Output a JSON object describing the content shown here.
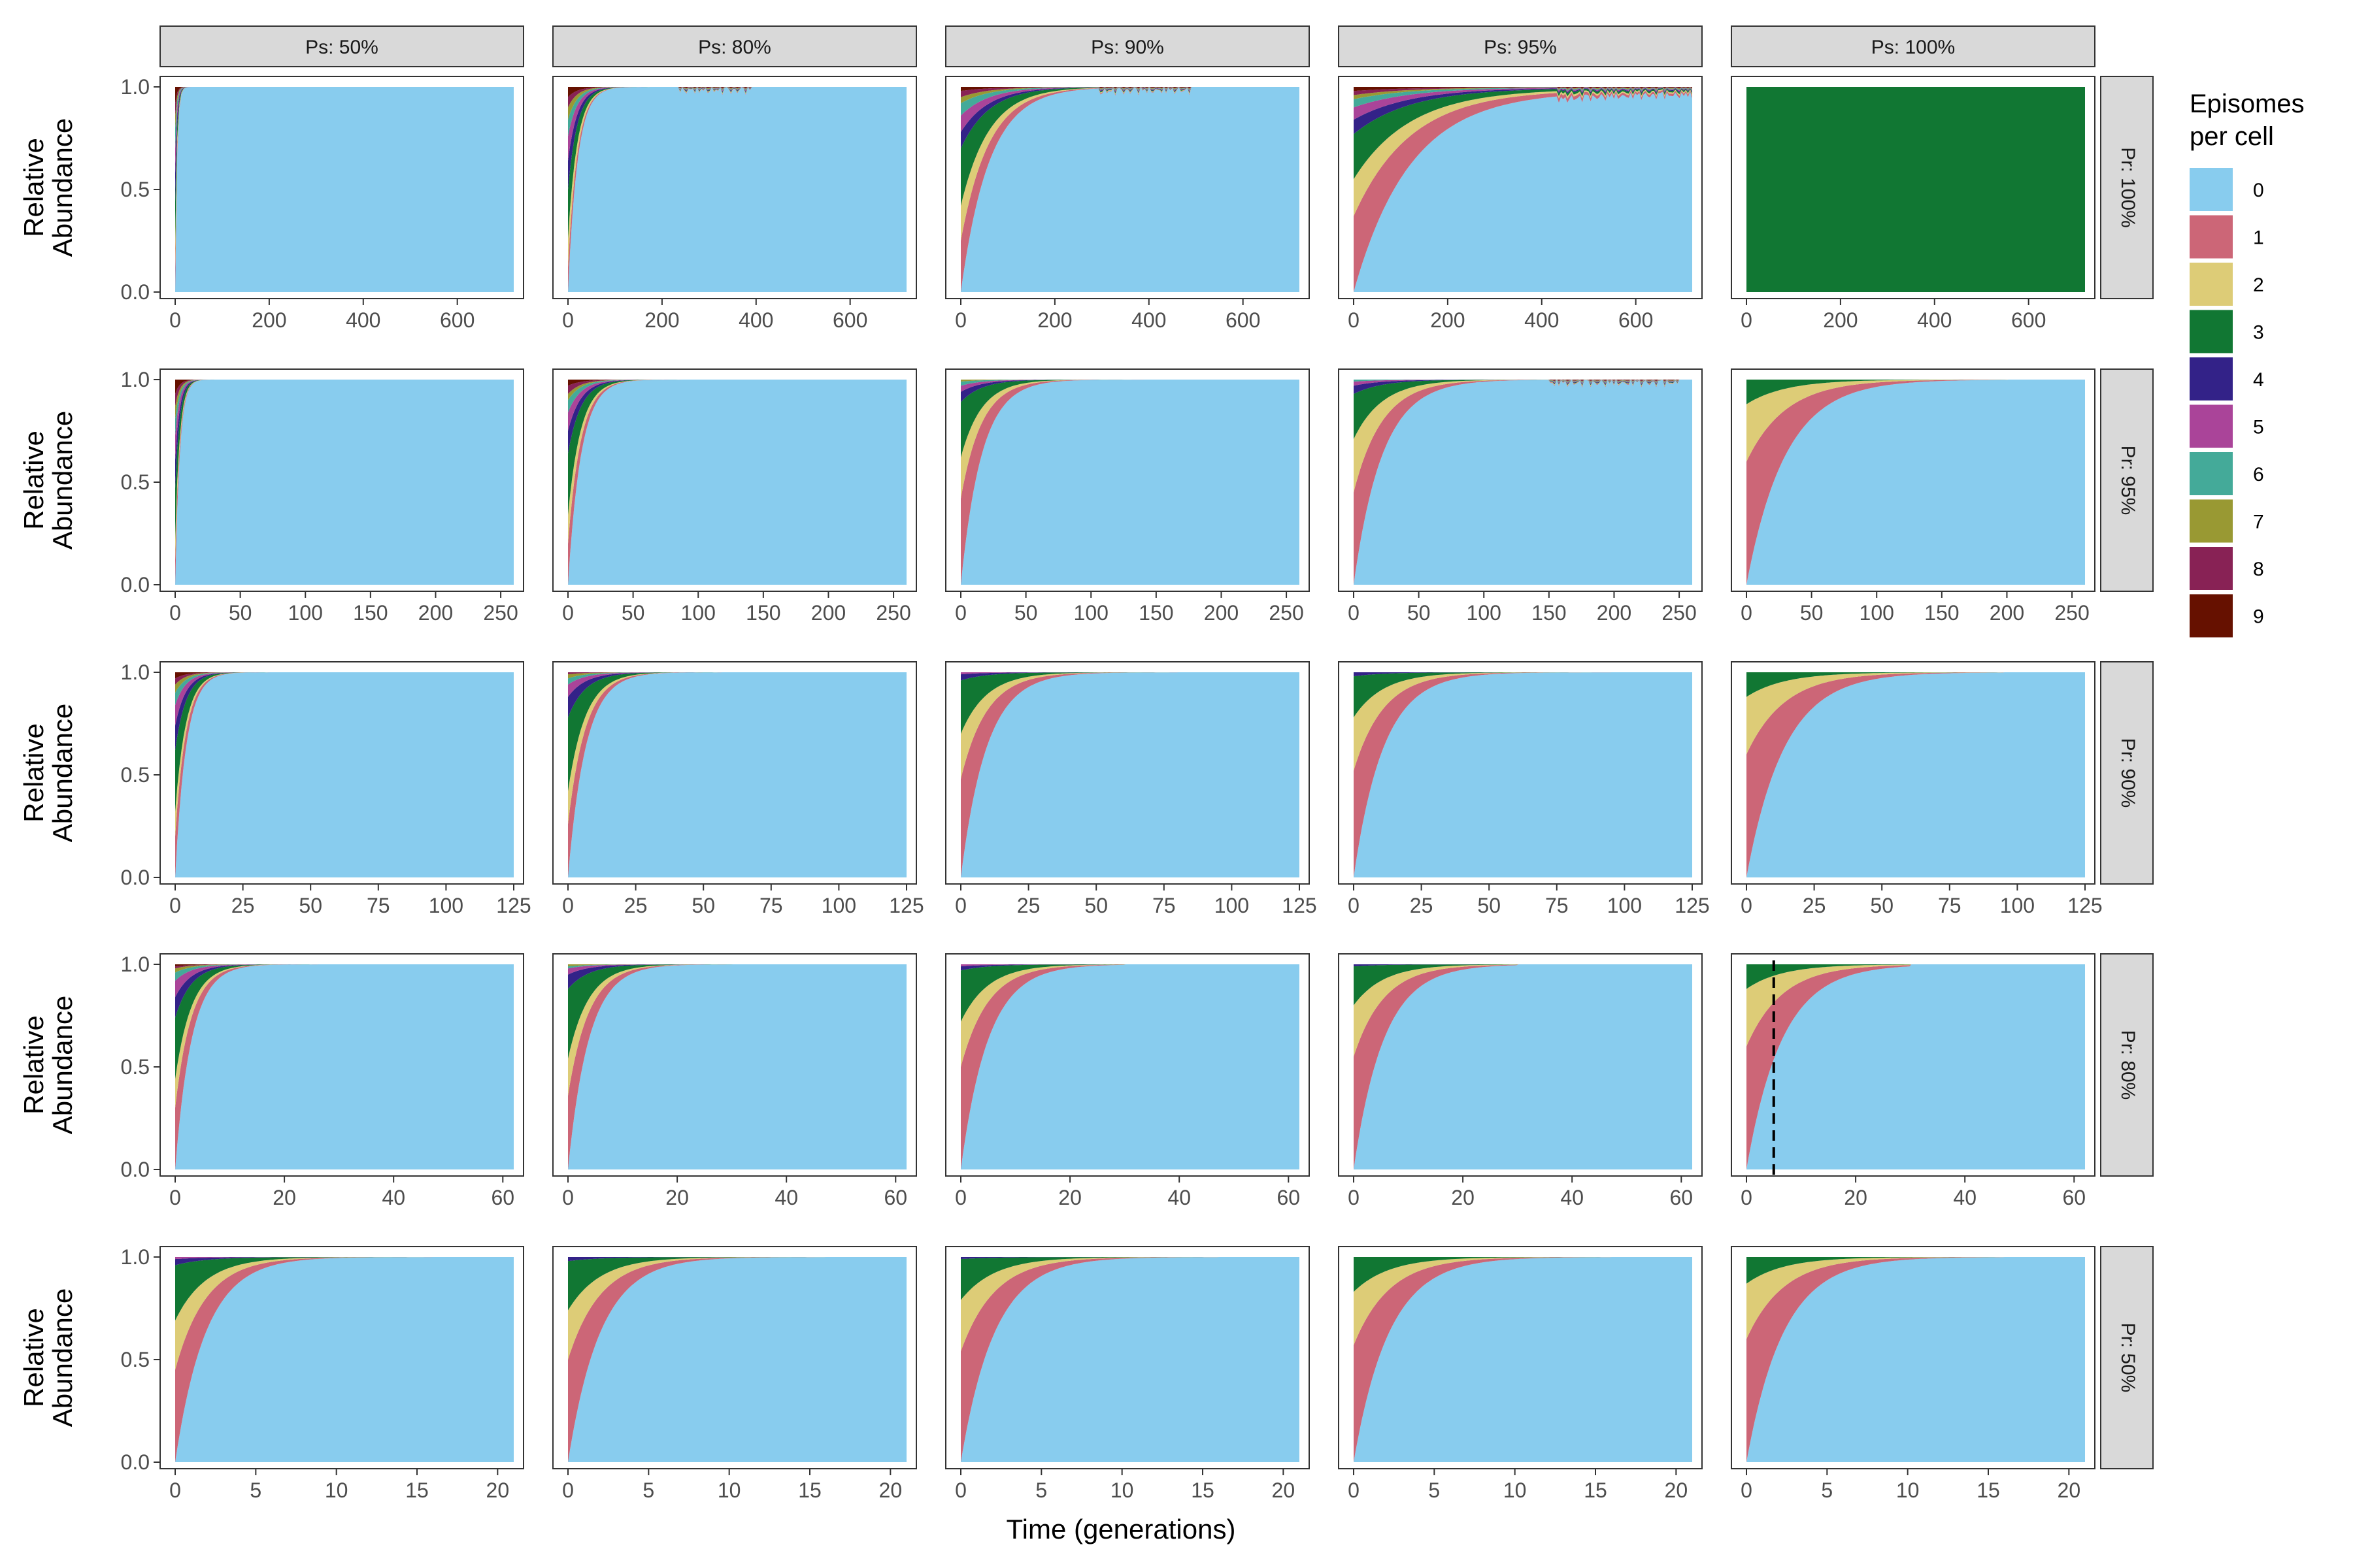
{
  "chart_data": {
    "type": "area",
    "title": "",
    "xlabel": "Time (generations)",
    "ylabel": "Relative\nAbundance",
    "ylim": [
      0,
      1
    ],
    "y_ticks": [
      "0.0",
      "0.5",
      "1.0"
    ],
    "grid": false,
    "legend_position": "right",
    "legend": {
      "title_line1": "Episomes",
      "title_line2": "per cell",
      "categories": [
        "0",
        "1",
        "2",
        "3",
        "4",
        "5",
        "6",
        "7",
        "8",
        "9"
      ],
      "colors": [
        "#88CCEE",
        "#CC6677",
        "#DDCC77",
        "#117733",
        "#332288",
        "#AA4499",
        "#44AA99",
        "#999933",
        "#882255",
        "#661100"
      ]
    },
    "column_facets": [
      "Ps: 50%",
      "Ps: 80%",
      "Ps: 90%",
      "Ps: 95%",
      "Ps: 100%"
    ],
    "row_facets": [
      {
        "label": "Pr: 100%",
        "xlim": [
          0,
          720
        ],
        "x_ticks": [
          "0",
          "200",
          "400",
          "600"
        ],
        "x_tick_values": [
          0,
          200,
          400,
          600
        ]
      },
      {
        "label": "Pr: 95%",
        "xlim": [
          0,
          260
        ],
        "x_ticks": [
          "0",
          "50",
          "100",
          "150",
          "200",
          "250"
        ],
        "x_tick_values": [
          0,
          50,
          100,
          150,
          200,
          250
        ]
      },
      {
        "label": "Pr: 90%",
        "xlim": [
          0,
          125
        ],
        "x_ticks": [
          "0",
          "25",
          "50",
          "75",
          "100",
          "125"
        ],
        "x_tick_values": [
          0,
          25,
          50,
          75,
          100,
          125
        ]
      },
      {
        "label": "Pr: 80%",
        "xlim": [
          0,
          62
        ],
        "x_ticks": [
          "0",
          "20",
          "40",
          "60"
        ],
        "x_tick_values": [
          0,
          20,
          40,
          60
        ]
      },
      {
        "label": "Pr: 50%",
        "xlim": [
          0,
          21
        ],
        "x_ticks": [
          "0",
          "5",
          "10",
          "15",
          "20"
        ],
        "x_tick_values": [
          0,
          5,
          10,
          15,
          20
        ]
      }
    ],
    "panels": [
      [
        {
          "end": 120,
          "tau": 4,
          "weights": [
            0,
            0.12,
            0.12,
            0.2,
            0.14,
            0.12,
            0.1,
            0.06,
            0.06,
            0.08
          ]
        },
        {
          "end": 390,
          "tau": 20,
          "weights": [
            0,
            0.12,
            0.14,
            0.24,
            0.14,
            0.12,
            0.08,
            0.06,
            0.05,
            0.05
          ],
          "noise": true
        },
        {
          "end": 490,
          "tau": 60,
          "weights": [
            0,
            0.25,
            0.17,
            0.28,
            0.08,
            0.08,
            0.06,
            0.03,
            0.03,
            0.02
          ],
          "noise": true
        },
        {
          "end": 720,
          "tau": 120,
          "floor": 0.02,
          "weights": [
            0,
            0.37,
            0.18,
            0.22,
            0.07,
            0.06,
            0.04,
            0.02,
            0.02,
            0.02
          ],
          "noise": true
        },
        {
          "all3": true,
          "end": 720
        }
      ],
      [
        {
          "end": 70,
          "tau": 3.5,
          "weights": [
            0,
            0.12,
            0.1,
            0.25,
            0.14,
            0.12,
            0.08,
            0.06,
            0.06,
            0.07
          ]
        },
        {
          "end": 130,
          "tau": 10,
          "weights": [
            0,
            0.2,
            0.14,
            0.3,
            0.11,
            0.09,
            0.06,
            0.03,
            0.04,
            0.03
          ]
        },
        {
          "end": 155,
          "tau": 16,
          "weights": [
            0,
            0.42,
            0.2,
            0.27,
            0.05,
            0.03,
            0.02,
            0.01,
            0,
            0
          ]
        },
        {
          "end": 250,
          "tau": 22,
          "weights": [
            0,
            0.45,
            0.26,
            0.22,
            0.04,
            0.02,
            0.01,
            0,
            0,
            0
          ],
          "noise": true
        },
        {
          "end": 200,
          "tau": 30,
          "weights": [
            0,
            0.6,
            0.28,
            0.12,
            0,
            0,
            0,
            0,
            0,
            0
          ]
        }
      ],
      [
        {
          "end": 70,
          "tau": 4,
          "weights": [
            0,
            0.2,
            0.12,
            0.3,
            0.12,
            0.1,
            0.06,
            0.04,
            0.03,
            0.03
          ]
        },
        {
          "end": 65,
          "tau": 6.5,
          "weights": [
            0,
            0.26,
            0.16,
            0.36,
            0.1,
            0.06,
            0.03,
            0.02,
            0.01,
            0
          ]
        },
        {
          "end": 80,
          "tau": 9.5,
          "weights": [
            0,
            0.48,
            0.22,
            0.26,
            0.03,
            0.01,
            0,
            0,
            0,
            0
          ]
        },
        {
          "end": 95,
          "tau": 11,
          "weights": [
            0,
            0.52,
            0.26,
            0.2,
            0.02,
            0,
            0,
            0,
            0,
            0
          ]
        },
        {
          "end": 95,
          "tau": 14,
          "weights": [
            0,
            0.6,
            0.28,
            0.12,
            0,
            0,
            0,
            0,
            0,
            0
          ]
        }
      ],
      [
        {
          "end": 32,
          "tau": 3,
          "weights": [
            0,
            0.3,
            0.14,
            0.3,
            0.1,
            0.08,
            0.04,
            0.02,
            0.01,
            0.01
          ]
        },
        {
          "end": 30,
          "tau": 3.8,
          "weights": [
            0,
            0.36,
            0.18,
            0.34,
            0.07,
            0.03,
            0.01,
            0.01,
            0,
            0
          ]
        },
        {
          "end": 30,
          "tau": 5,
          "weights": [
            0,
            0.5,
            0.22,
            0.25,
            0.02,
            0.01,
            0,
            0,
            0,
            0
          ]
        },
        {
          "end": 30,
          "tau": 5.5,
          "weights": [
            0,
            0.55,
            0.25,
            0.19,
            0.01,
            0,
            0,
            0,
            0,
            0
          ]
        },
        {
          "end": 30,
          "tau": 6.5,
          "weights": [
            0,
            0.6,
            0.28,
            0.12,
            0,
            0,
            0,
            0,
            0,
            0
          ],
          "vline": 5
        }
      ],
      [
        {
          "end": 16,
          "tau": 1.9,
          "weights": [
            0,
            0.45,
            0.24,
            0.27,
            0.03,
            0.01,
            0,
            0,
            0,
            0
          ]
        },
        {
          "end": 16,
          "tau": 2.0,
          "weights": [
            0,
            0.5,
            0.24,
            0.24,
            0.02,
            0,
            0,
            0,
            0,
            0
          ]
        },
        {
          "end": 16,
          "tau": 2.1,
          "weights": [
            0,
            0.54,
            0.25,
            0.2,
            0.01,
            0,
            0,
            0,
            0,
            0
          ]
        },
        {
          "end": 16,
          "tau": 2.2,
          "weights": [
            0,
            0.57,
            0.26,
            0.17,
            0,
            0,
            0,
            0,
            0,
            0
          ]
        },
        {
          "end": 16,
          "tau": 2.3,
          "weights": [
            0,
            0.6,
            0.27,
            0.13,
            0,
            0,
            0,
            0,
            0,
            0
          ]
        }
      ]
    ]
  }
}
